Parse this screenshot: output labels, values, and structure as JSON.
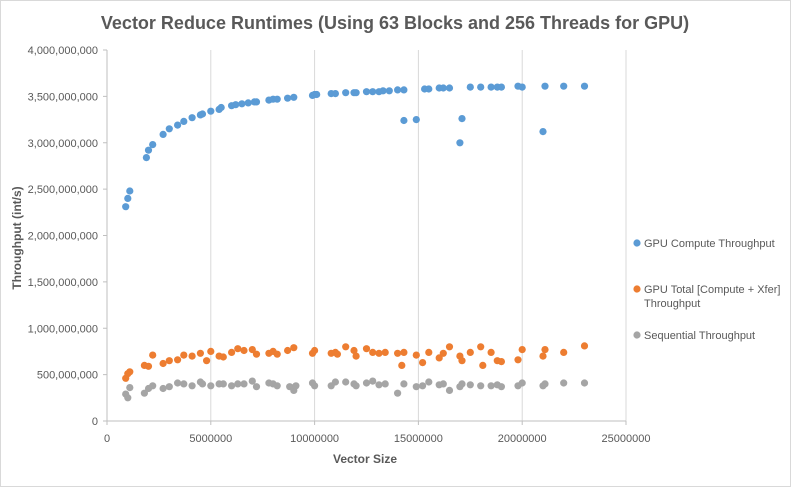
{
  "chart_data": {
    "type": "scatter",
    "title": "Vector Reduce Runtimes (Using 63 Blocks and 256 Threads for GPU)",
    "xlabel": "Vector Size",
    "ylabel": "Throughput (int/s)",
    "xlim": [
      0,
      25000000
    ],
    "ylim": [
      0,
      4000000000
    ],
    "x_ticks": [
      0,
      5000000,
      10000000,
      15000000,
      20000000,
      25000000
    ],
    "x_tick_labels": [
      "0",
      "5000000",
      "10000000",
      "15000000",
      "20000000",
      "25000000"
    ],
    "y_ticks": [
      0,
      500000000,
      1000000000,
      1500000000,
      2000000000,
      2500000000,
      3000000000,
      3500000000,
      4000000000
    ],
    "y_tick_labels": [
      "0",
      "500,000,000",
      "1,000,000,000",
      "1,500,000,000",
      "2,000,000,000",
      "2,500,000,000",
      "3,000,000,000",
      "3,500,000,000",
      "4,000,000,000"
    ],
    "grid": "vertical",
    "legend_position": "right",
    "series": [
      {
        "name": "GPU Compute Throughput",
        "color": "#5b9bd5",
        "points": [
          [
            900000,
            2310000000
          ],
          [
            1000000,
            2400000000
          ],
          [
            1100000,
            2480000000
          ],
          [
            1900000,
            2840000000
          ],
          [
            2000000,
            2920000000
          ],
          [
            2200000,
            2980000000
          ],
          [
            2700000,
            3090000000
          ],
          [
            3000000,
            3150000000
          ],
          [
            3400000,
            3190000000
          ],
          [
            3700000,
            3230000000
          ],
          [
            4100000,
            3270000000
          ],
          [
            4500000,
            3300000000
          ],
          [
            4600000,
            3310000000
          ],
          [
            5000000,
            3340000000
          ],
          [
            5400000,
            3360000000
          ],
          [
            5500000,
            3380000000
          ],
          [
            6000000,
            3400000000
          ],
          [
            6200000,
            3410000000
          ],
          [
            6500000,
            3420000000
          ],
          [
            6800000,
            3430000000
          ],
          [
            7100000,
            3440000000
          ],
          [
            7200000,
            3440000000
          ],
          [
            7800000,
            3460000000
          ],
          [
            8000000,
            3470000000
          ],
          [
            8200000,
            3470000000
          ],
          [
            8700000,
            3480000000
          ],
          [
            9000000,
            3490000000
          ],
          [
            9900000,
            3510000000
          ],
          [
            10000000,
            3520000000
          ],
          [
            10100000,
            3520000000
          ],
          [
            10800000,
            3530000000
          ],
          [
            11000000,
            3530000000
          ],
          [
            11500000,
            3540000000
          ],
          [
            11900000,
            3540000000
          ],
          [
            12000000,
            3540000000
          ],
          [
            12500000,
            3550000000
          ],
          [
            12800000,
            3550000000
          ],
          [
            13100000,
            3550000000
          ],
          [
            13300000,
            3560000000
          ],
          [
            13600000,
            3560000000
          ],
          [
            14000000,
            3570000000
          ],
          [
            14300000,
            3240000000
          ],
          [
            14300000,
            3570000000
          ],
          [
            14900000,
            3250000000
          ],
          [
            15300000,
            3580000000
          ],
          [
            15500000,
            3580000000
          ],
          [
            16000000,
            3590000000
          ],
          [
            16200000,
            3590000000
          ],
          [
            16500000,
            3590000000
          ],
          [
            17000000,
            3000000000
          ],
          [
            17100000,
            3260000000
          ],
          [
            17500000,
            3600000000
          ],
          [
            18000000,
            3600000000
          ],
          [
            18500000,
            3600000000
          ],
          [
            18800000,
            3600000000
          ],
          [
            19000000,
            3600000000
          ],
          [
            19800000,
            3610000000
          ],
          [
            20000000,
            3600000000
          ],
          [
            21000000,
            3120000000
          ],
          [
            21100000,
            3610000000
          ],
          [
            22000000,
            3610000000
          ],
          [
            23000000,
            3610000000
          ]
        ]
      },
      {
        "name": "GPU Total [Compute + Xfer] Throughput",
        "color": "#ed7d31",
        "points": [
          [
            900000,
            460000000
          ],
          [
            1000000,
            510000000
          ],
          [
            1100000,
            530000000
          ],
          [
            1800000,
            600000000
          ],
          [
            2000000,
            590000000
          ],
          [
            2200000,
            710000000
          ],
          [
            2700000,
            620000000
          ],
          [
            3000000,
            650000000
          ],
          [
            3400000,
            660000000
          ],
          [
            3700000,
            710000000
          ],
          [
            4100000,
            700000000
          ],
          [
            4500000,
            730000000
          ],
          [
            4800000,
            650000000
          ],
          [
            5000000,
            750000000
          ],
          [
            5400000,
            700000000
          ],
          [
            5600000,
            690000000
          ],
          [
            6000000,
            740000000
          ],
          [
            6300000,
            780000000
          ],
          [
            6600000,
            760000000
          ],
          [
            7000000,
            770000000
          ],
          [
            7200000,
            720000000
          ],
          [
            7800000,
            730000000
          ],
          [
            8000000,
            750000000
          ],
          [
            8200000,
            720000000
          ],
          [
            8700000,
            760000000
          ],
          [
            9000000,
            790000000
          ],
          [
            9900000,
            730000000
          ],
          [
            10000000,
            760000000
          ],
          [
            10800000,
            730000000
          ],
          [
            11000000,
            740000000
          ],
          [
            11100000,
            720000000
          ],
          [
            11500000,
            800000000
          ],
          [
            11900000,
            760000000
          ],
          [
            12000000,
            700000000
          ],
          [
            12500000,
            780000000
          ],
          [
            12800000,
            740000000
          ],
          [
            13100000,
            730000000
          ],
          [
            13400000,
            740000000
          ],
          [
            14000000,
            730000000
          ],
          [
            14200000,
            600000000
          ],
          [
            14300000,
            740000000
          ],
          [
            14900000,
            710000000
          ],
          [
            15200000,
            630000000
          ],
          [
            15500000,
            740000000
          ],
          [
            16000000,
            680000000
          ],
          [
            16200000,
            730000000
          ],
          [
            16500000,
            800000000
          ],
          [
            17000000,
            700000000
          ],
          [
            17100000,
            650000000
          ],
          [
            17500000,
            740000000
          ],
          [
            18000000,
            800000000
          ],
          [
            18100000,
            600000000
          ],
          [
            18500000,
            740000000
          ],
          [
            18800000,
            650000000
          ],
          [
            19000000,
            640000000
          ],
          [
            19800000,
            660000000
          ],
          [
            20000000,
            770000000
          ],
          [
            21000000,
            700000000
          ],
          [
            21100000,
            770000000
          ],
          [
            22000000,
            740000000
          ],
          [
            23000000,
            810000000
          ]
        ]
      },
      {
        "name": "Sequential Throughput",
        "color": "#a5a5a5",
        "points": [
          [
            900000,
            290000000
          ],
          [
            1000000,
            250000000
          ],
          [
            1100000,
            360000000
          ],
          [
            1800000,
            300000000
          ],
          [
            2000000,
            350000000
          ],
          [
            2200000,
            380000000
          ],
          [
            2700000,
            350000000
          ],
          [
            3000000,
            370000000
          ],
          [
            3400000,
            410000000
          ],
          [
            3700000,
            400000000
          ],
          [
            4100000,
            380000000
          ],
          [
            4500000,
            420000000
          ],
          [
            4600000,
            400000000
          ],
          [
            5000000,
            380000000
          ],
          [
            5400000,
            400000000
          ],
          [
            5600000,
            400000000
          ],
          [
            6000000,
            380000000
          ],
          [
            6300000,
            400000000
          ],
          [
            6600000,
            400000000
          ],
          [
            7000000,
            430000000
          ],
          [
            7200000,
            370000000
          ],
          [
            7800000,
            410000000
          ],
          [
            8000000,
            400000000
          ],
          [
            8200000,
            380000000
          ],
          [
            8800000,
            370000000
          ],
          [
            9000000,
            330000000
          ],
          [
            9100000,
            380000000
          ],
          [
            9900000,
            410000000
          ],
          [
            10000000,
            380000000
          ],
          [
            10800000,
            380000000
          ],
          [
            11000000,
            420000000
          ],
          [
            11500000,
            420000000
          ],
          [
            11900000,
            400000000
          ],
          [
            12000000,
            380000000
          ],
          [
            12500000,
            410000000
          ],
          [
            12800000,
            430000000
          ],
          [
            13100000,
            390000000
          ],
          [
            13400000,
            400000000
          ],
          [
            14000000,
            300000000
          ],
          [
            14300000,
            400000000
          ],
          [
            14900000,
            370000000
          ],
          [
            15200000,
            380000000
          ],
          [
            15500000,
            420000000
          ],
          [
            16000000,
            390000000
          ],
          [
            16200000,
            400000000
          ],
          [
            16500000,
            330000000
          ],
          [
            17000000,
            370000000
          ],
          [
            17100000,
            400000000
          ],
          [
            17500000,
            390000000
          ],
          [
            18000000,
            380000000
          ],
          [
            18500000,
            380000000
          ],
          [
            18800000,
            390000000
          ],
          [
            19000000,
            370000000
          ],
          [
            19800000,
            380000000
          ],
          [
            20000000,
            410000000
          ],
          [
            21000000,
            380000000
          ],
          [
            21100000,
            400000000
          ],
          [
            22000000,
            410000000
          ],
          [
            23000000,
            410000000
          ]
        ]
      }
    ]
  }
}
